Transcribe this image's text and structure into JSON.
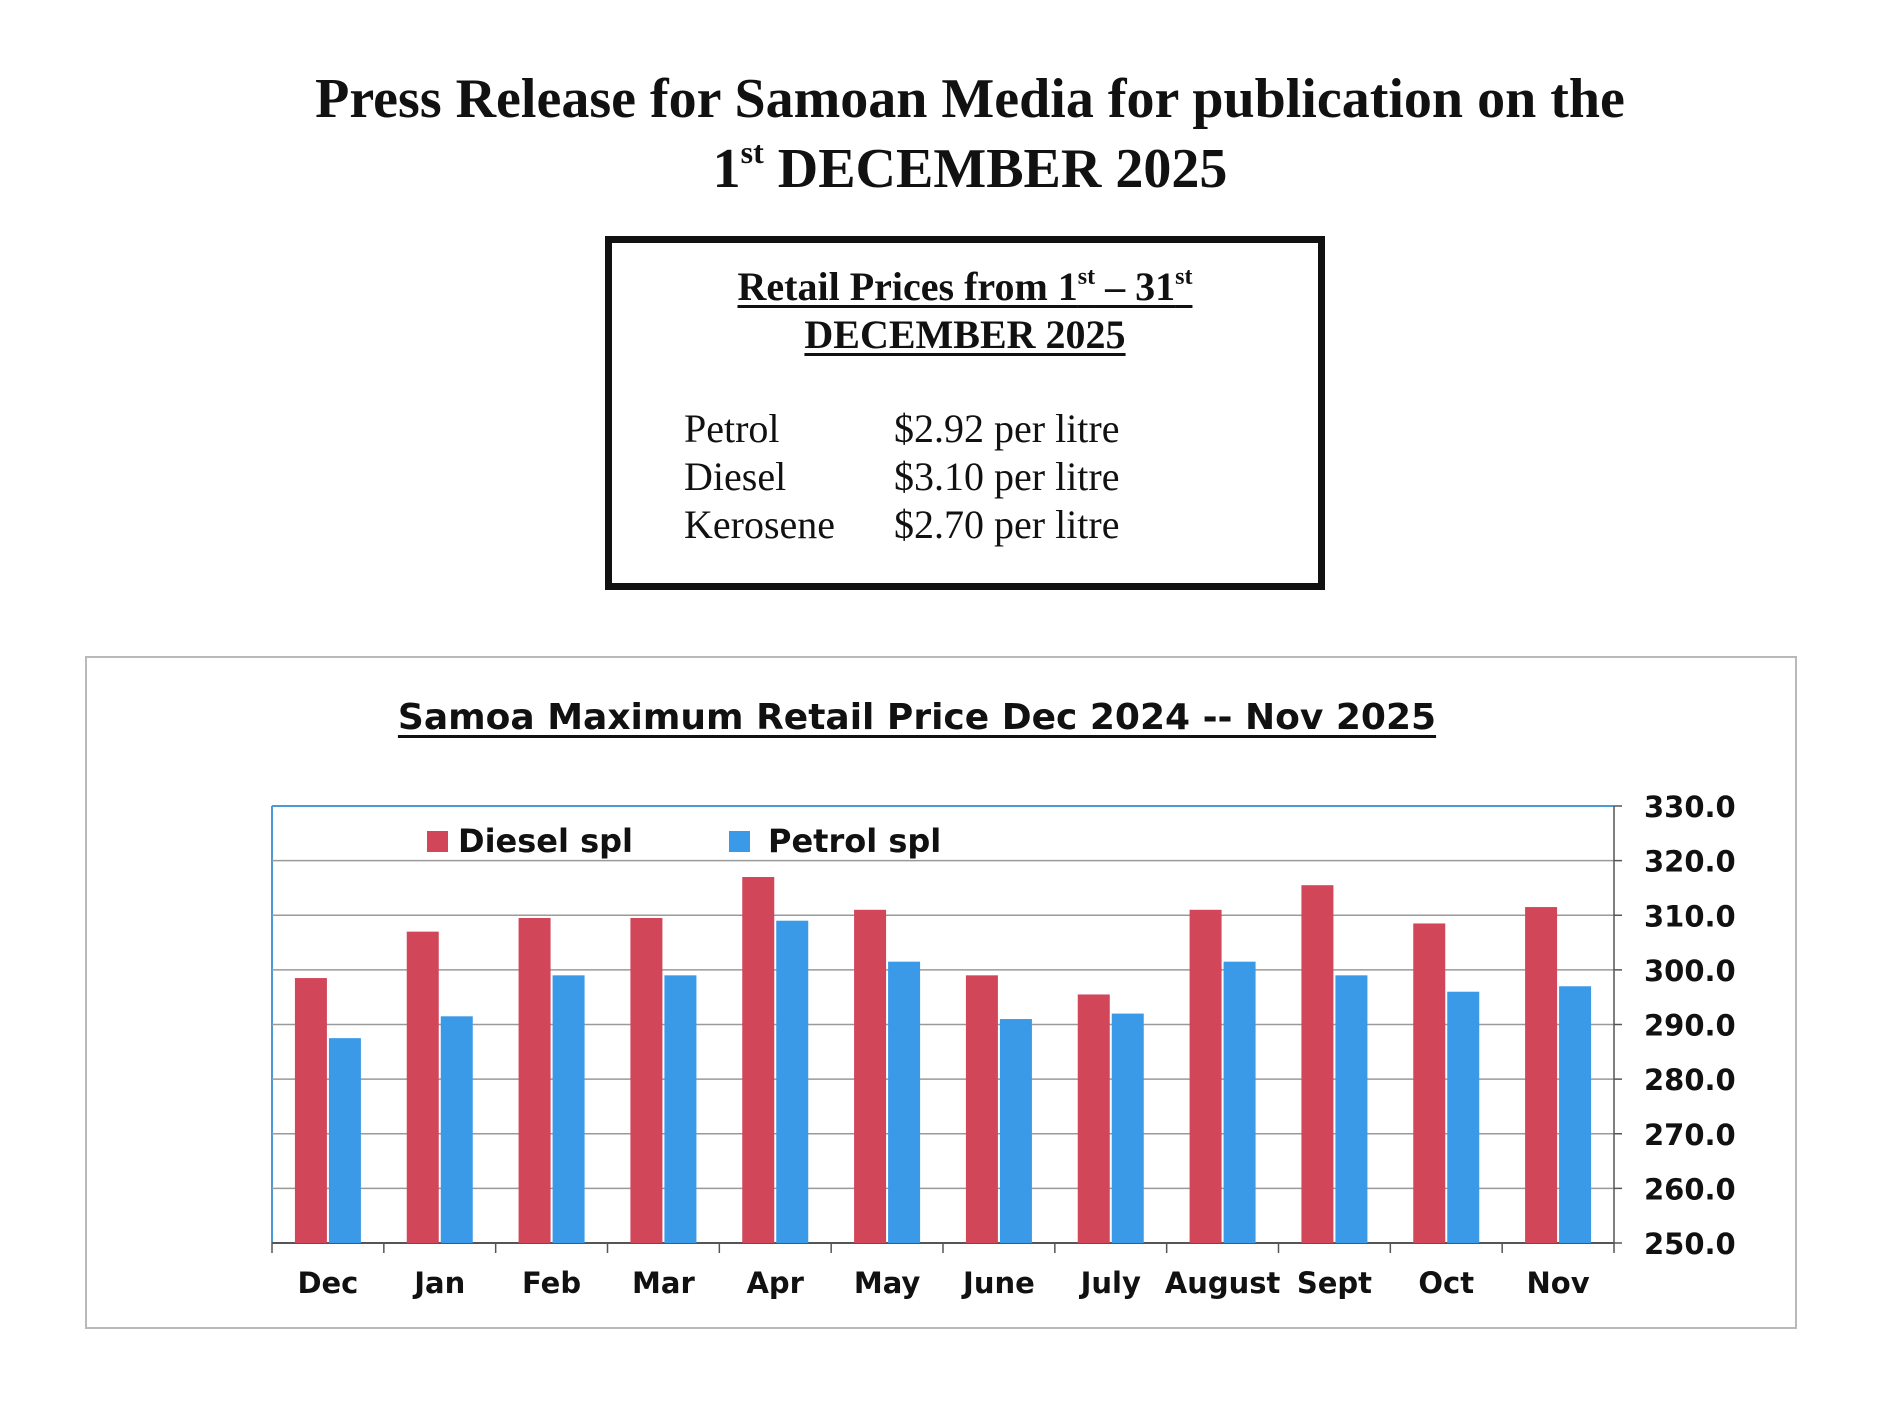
{
  "press_release": {
    "headline_line1": "Press Release for Samoan Media for publication on the",
    "headline_day": "1",
    "headline_day_suffix": "st",
    "headline_month_year": "DECEMBER 2025"
  },
  "retail_box": {
    "heading_prefix": "Retail Prices from 1",
    "heading_sup1": "st",
    "heading_mid": " – 31",
    "heading_sup2": "st",
    "heading_line2": "DECEMBER 2025",
    "prices": [
      {
        "fuel": "Petrol",
        "price": "$2.92 per litre"
      },
      {
        "fuel": "Diesel",
        "price": "$3.10 per litre"
      },
      {
        "fuel": "Kerosene",
        "price": "$2.70 per litre"
      }
    ]
  },
  "chart_data": {
    "type": "bar",
    "title": "Samoa Maximum Retail  Price  Dec 2024 -- Nov 2025",
    "categories": [
      "Dec",
      "Jan",
      "Feb",
      "Mar",
      "Apr",
      "May",
      "June",
      "July",
      "August",
      "Sept",
      "Oct",
      "Nov"
    ],
    "series": [
      {
        "name": "Diesel spl",
        "color": "#d2465a",
        "values": [
          298.5,
          307.0,
          309.5,
          309.5,
          317.0,
          311.0,
          299.0,
          295.5,
          311.0,
          315.5,
          308.5,
          311.5
        ]
      },
      {
        "name": "Petrol spl",
        "color": "#3b9ae8",
        "values": [
          287.5,
          291.5,
          299.0,
          299.0,
          309.0,
          301.5,
          291.0,
          292.0,
          301.5,
          299.0,
          296.0,
          297.0
        ]
      }
    ],
    "ylim": [
      250,
      330
    ],
    "yticks": [
      "250.0",
      "260.0",
      "270.0",
      "280.0",
      "290.0",
      "300.0",
      "310.0",
      "320.0",
      "330.0"
    ],
    "y_axis_side": "right",
    "grid": true,
    "legend_position": "top-left"
  }
}
